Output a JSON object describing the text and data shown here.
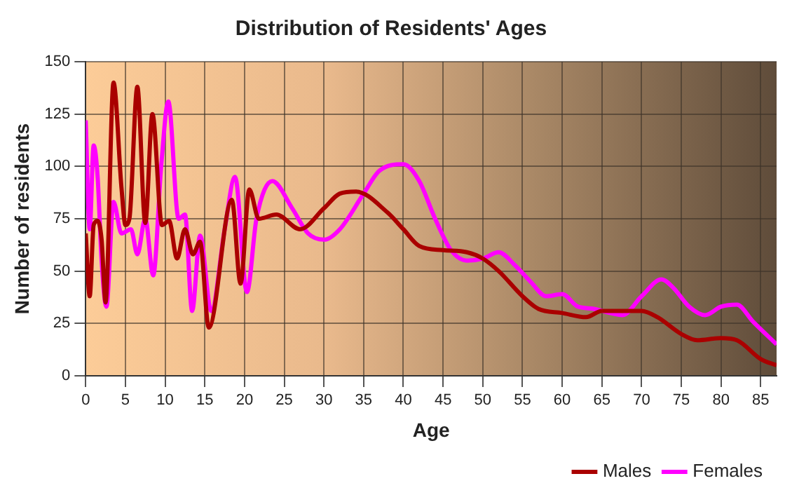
{
  "chart_data": {
    "type": "line",
    "title": "Distribution of Residents' Ages",
    "xlabel": "Age",
    "ylabel": "Number of residents",
    "xlim": [
      0,
      87
    ],
    "xticks": [
      0,
      5,
      10,
      15,
      20,
      25,
      30,
      35,
      40,
      45,
      50,
      55,
      60,
      65,
      70,
      75,
      80,
      85
    ],
    "ylim": [
      0,
      150
    ],
    "yticks": [
      0,
      25,
      50,
      75,
      100,
      125,
      150
    ],
    "grid": true,
    "legend": "bottom right",
    "marker": "none",
    "line_style": "solid",
    "series": [
      {
        "name": "Males",
        "color": "#aa0000",
        "x": [
          0,
          0.5,
          1,
          1.5,
          2,
          2.5,
          3.5,
          4.5,
          5,
          5.5,
          6.5,
          7.5,
          8.4,
          9.6,
          10.5,
          11.5,
          12.5,
          13.5,
          14.4,
          15.5,
          18.4,
          19.5,
          20.6,
          21.8,
          24,
          27,
          30,
          32,
          34,
          38,
          40,
          42,
          45,
          48,
          50,
          52,
          55,
          57,
          60,
          63,
          65,
          68,
          70,
          72,
          75,
          77,
          80,
          82,
          85,
          87
        ],
        "values": [
          68,
          38,
          72,
          74,
          65,
          35,
          140,
          90,
          72,
          75,
          138,
          73,
          125,
          72,
          74,
          56,
          70,
          58,
          64,
          23,
          84,
          44,
          89,
          75,
          77,
          70,
          80,
          87,
          88,
          78,
          70,
          62,
          60,
          59,
          56,
          50,
          38,
          32,
          30,
          28,
          31,
          31,
          31,
          28,
          20,
          17,
          18,
          17,
          8,
          5
        ]
      },
      {
        "name": "Females",
        "color": "#ff00ff",
        "x": [
          0,
          0.5,
          1,
          1.5,
          2,
          2.6,
          3.5,
          4.5,
          5.7,
          6.5,
          7.5,
          8.5,
          9.5,
          10.4,
          11.7,
          12.5,
          13.4,
          14.4,
          15.8,
          17.5,
          18.8,
          20.3,
          21.5,
          23.5,
          26,
          28,
          30,
          32,
          35,
          37,
          40,
          42,
          44,
          46,
          48,
          50,
          52,
          54,
          56,
          58,
          60,
          62,
          64,
          66,
          67.6,
          70,
          72.5,
          74,
          76,
          78,
          80,
          82,
          84,
          87
        ],
        "values": [
          122,
          70,
          110,
          95,
          55,
          33,
          83,
          68,
          70,
          58,
          75,
          48,
          100,
          131,
          75,
          77,
          31,
          67,
          31,
          70,
          95,
          40,
          75,
          93,
          80,
          68,
          65,
          70,
          87,
          98,
          101,
          93,
          75,
          60,
          55,
          56,
          59,
          53,
          45,
          38,
          39,
          33,
          32,
          30,
          29,
          38,
          46,
          42,
          33,
          29,
          33,
          34,
          26,
          15
        ]
      }
    ]
  }
}
